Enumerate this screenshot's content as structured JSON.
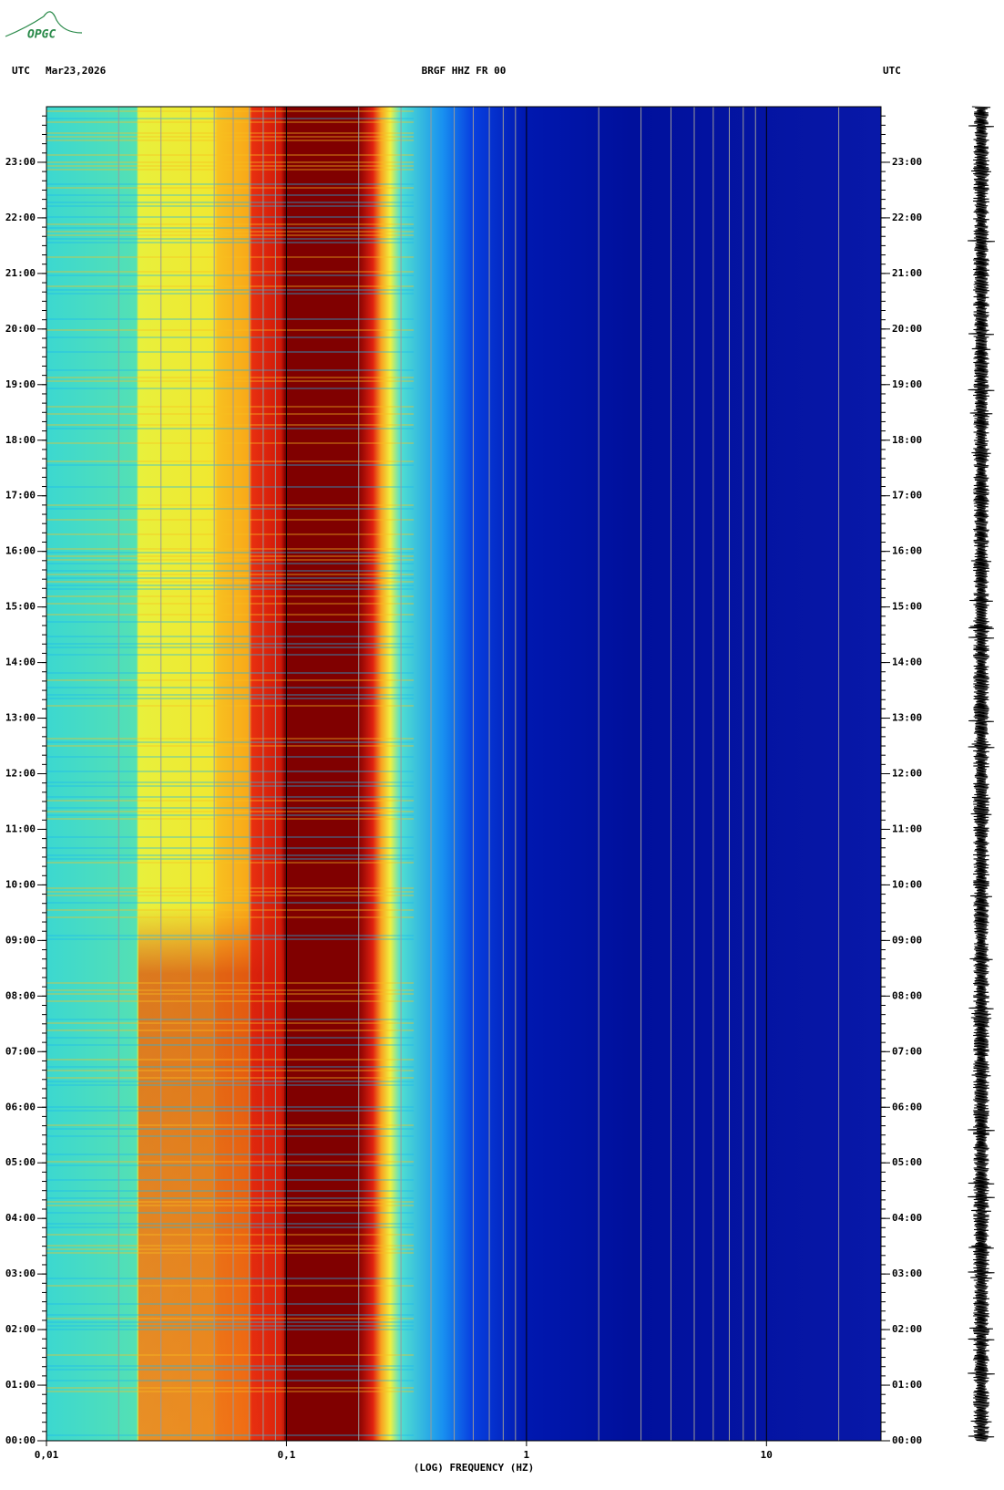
{
  "logo": "OPGC",
  "chart_data": {
    "type": "spectrogram",
    "title": "BRGF HHZ FR 00",
    "time_zone_left": "UTC",
    "date": "Mar23,2026",
    "time_zone_right": "UTC",
    "x_label": "(LOG) FREQUENCY (HZ)",
    "log_x": true,
    "xlim": [
      0.01,
      30
    ],
    "xticks": [
      {
        "value": 0.01,
        "label": "0,01"
      },
      {
        "value": 0.1,
        "label": "0,1"
      },
      1,
      10
    ],
    "ylim": [
      0,
      24
    ],
    "yticks": [
      {
        "value": 0,
        "label": "00:00"
      },
      {
        "value": 1,
        "label": "01:00"
      },
      {
        "value": 2,
        "label": "02:00"
      },
      {
        "value": 3,
        "label": "03:00"
      },
      {
        "value": 4,
        "label": "04:00"
      },
      {
        "value": 5,
        "label": "05:00"
      },
      {
        "value": 6,
        "label": "06:00"
      },
      {
        "value": 7,
        "label": "07:00"
      },
      {
        "value": 8,
        "label": "08:00"
      },
      {
        "value": 9,
        "label": "09:00"
      },
      {
        "value": 10,
        "label": "10:00"
      },
      {
        "value": 11,
        "label": "11:00"
      },
      {
        "value": 12,
        "label": "12:00"
      },
      {
        "value": 13,
        "label": "13:00"
      },
      {
        "value": 14,
        "label": "14:00"
      },
      {
        "value": 15,
        "label": "15:00"
      },
      {
        "value": 16,
        "label": "16:00"
      },
      {
        "value": 17,
        "label": "17:00"
      },
      {
        "value": 18,
        "label": "18:00"
      },
      {
        "value": 19,
        "label": "19:00"
      },
      {
        "value": 20,
        "label": "20:00"
      },
      {
        "value": 21,
        "label": "21:00"
      },
      {
        "value": 22,
        "label": "22:00"
      },
      {
        "value": 23,
        "label": "23:00"
      }
    ]
  }
}
